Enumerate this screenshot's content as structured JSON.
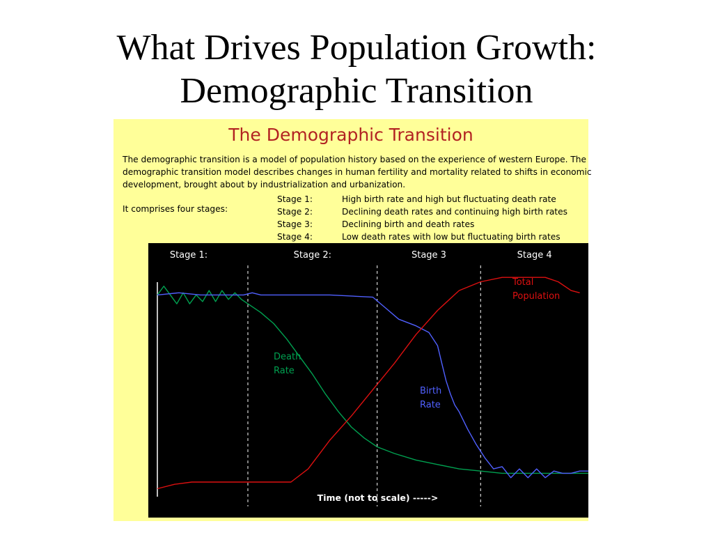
{
  "slide_title": [
    "What Drives Population Growth:",
    "Demographic Transition"
  ],
  "panel": {
    "title": "The Demographic Transition",
    "description_lines": [
      "The demographic transition is a model of population history based on the experience of western Europe.  The",
      "demographic transition model describes changes in human fertility and mortality related to shifts in economic",
      "development, brought about by industrialization and urbanization."
    ],
    "stages_intro": "It comprises four stages:",
    "stages": [
      {
        "label": "Stage 1:",
        "desc": "High birth rate and high but fluctuating death rate"
      },
      {
        "label": "Stage 2:",
        "desc": "Declining death rates and continuing high birth rates"
      },
      {
        "label": "Stage 3:",
        "desc": "Declining birth and death rates"
      },
      {
        "label": "Stage 4:",
        "desc": "Low death rates with low but fluctuating birth rates"
      }
    ]
  },
  "colors": {
    "panel_background": "#ffff99",
    "chart_background": "#000000",
    "panel_title": "#b22222",
    "death_rate": "#00a050",
    "birth_rate": "#5060ff",
    "total_population": "#dd1010",
    "axis_text": "#ffffff"
  },
  "chart_data": {
    "type": "line",
    "xlabel": "Time (not to scale) ----->",
    "ylabel": "",
    "xlim": [
      0,
      100
    ],
    "ylim": [
      0,
      100
    ],
    "stage_labels": [
      "Stage 1:",
      "Stage 2:",
      "Stage 3",
      "Stage 4"
    ],
    "stage_boundaries": [
      21,
      51,
      75
    ],
    "grid": false,
    "series": [
      {
        "name": "Death Rate",
        "label_lines": [
          "Death",
          "Rate"
        ],
        "x": [
          0,
          1.5,
          3,
          4.5,
          6,
          7.5,
          9,
          10.5,
          12,
          13.5,
          15,
          16.5,
          18,
          19.5,
          21,
          24,
          27,
          30,
          33,
          36,
          39,
          42,
          45,
          48,
          51,
          55,
          60,
          65,
          70,
          75,
          80,
          85,
          90,
          95,
          100
        ],
        "y": [
          91,
          95,
          91,
          87,
          92,
          87,
          91,
          88,
          93,
          88,
          93,
          89,
          92,
          89,
          87,
          83,
          78,
          71,
          63,
          55,
          46,
          38,
          31,
          26,
          22,
          19,
          16,
          14,
          12,
          11,
          10,
          10,
          10,
          10,
          10
        ]
      },
      {
        "name": "Birth Rate",
        "label_lines": [
          "Birth",
          "Rate"
        ],
        "x": [
          0,
          5,
          10,
          15,
          20,
          22,
          24,
          30,
          40,
          50,
          53,
          56,
          60,
          63,
          65,
          66,
          67,
          68,
          69,
          70,
          72,
          74,
          76,
          78,
          80,
          82,
          84,
          86,
          88,
          90,
          92,
          94,
          96,
          98,
          100
        ],
        "y": [
          91,
          92,
          91,
          91,
          91,
          92,
          91,
          91,
          91,
          90,
          85,
          80,
          77,
          74,
          68,
          60,
          52,
          46,
          41,
          38,
          30,
          23,
          17,
          12,
          13,
          8,
          12,
          8,
          12,
          8,
          11,
          10,
          10,
          11,
          11
        ]
      },
      {
        "name": "Total Population",
        "label_lines": [
          "Total",
          "Population"
        ],
        "x": [
          0,
          4,
          8,
          14,
          20,
          26,
          31,
          35,
          40,
          45,
          50,
          55,
          60,
          65,
          70,
          75,
          80,
          85,
          90,
          93,
          96,
          98
        ],
        "y": [
          3,
          5,
          6,
          6,
          6,
          6,
          6,
          12,
          25,
          36,
          48,
          60,
          73,
          84,
          93,
          97,
          99,
          99,
          99,
          97,
          93,
          92
        ]
      }
    ]
  }
}
